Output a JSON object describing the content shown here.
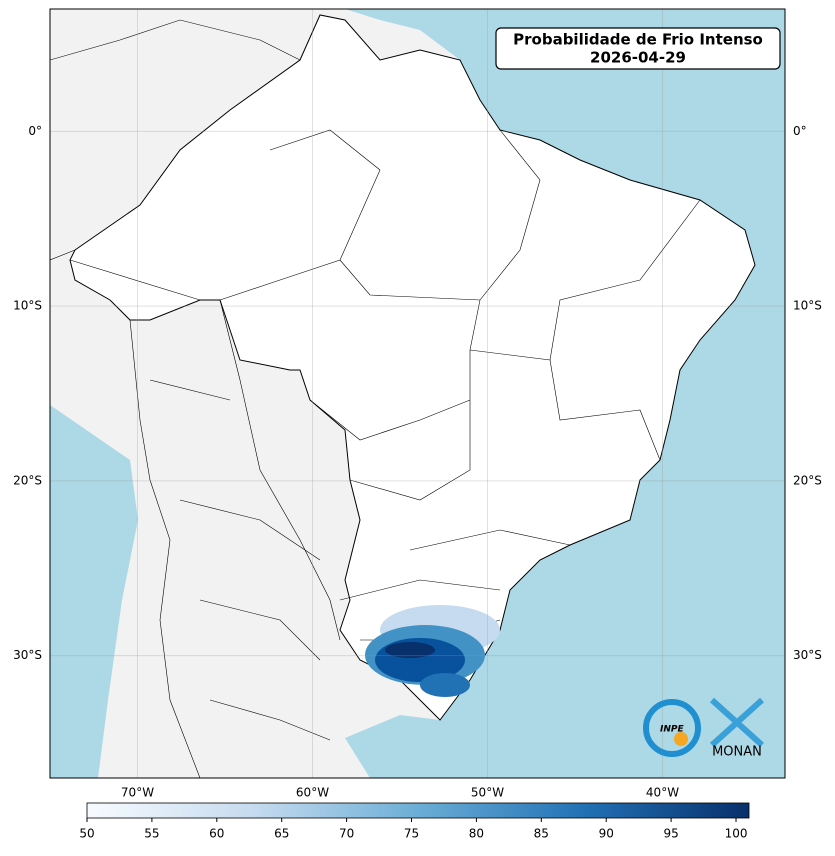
{
  "title": [
    "Probabilidade de Frio Intenso",
    "2026-04-29"
  ],
  "map": {
    "xlim": [
      -75,
      -33
    ],
    "ylim": [
      -37,
      7
    ],
    "xticks": [
      {
        "value": -70,
        "label": "70°W"
      },
      {
        "value": -60,
        "label": "60°W"
      },
      {
        "value": -50,
        "label": "50°W"
      },
      {
        "value": -40,
        "label": "40°W"
      }
    ],
    "yticks": [
      {
        "value": 0,
        "label": "0°"
      },
      {
        "value": -10,
        "label": "10°S"
      },
      {
        "value": -20,
        "label": "20°S"
      },
      {
        "value": -30,
        "label": "30°S"
      }
    ],
    "grid": true
  },
  "colorbar": {
    "lim": [
      50,
      101
    ],
    "ticks": [
      50,
      55,
      60,
      65,
      70,
      75,
      80,
      85,
      90,
      95,
      100
    ],
    "colors": [
      "#f7fbff",
      "#c6dbef",
      "#6baed6",
      "#2171b5",
      "#08306b"
    ]
  },
  "logo": {
    "inpe": "INPE",
    "monan": "MONAN"
  }
}
